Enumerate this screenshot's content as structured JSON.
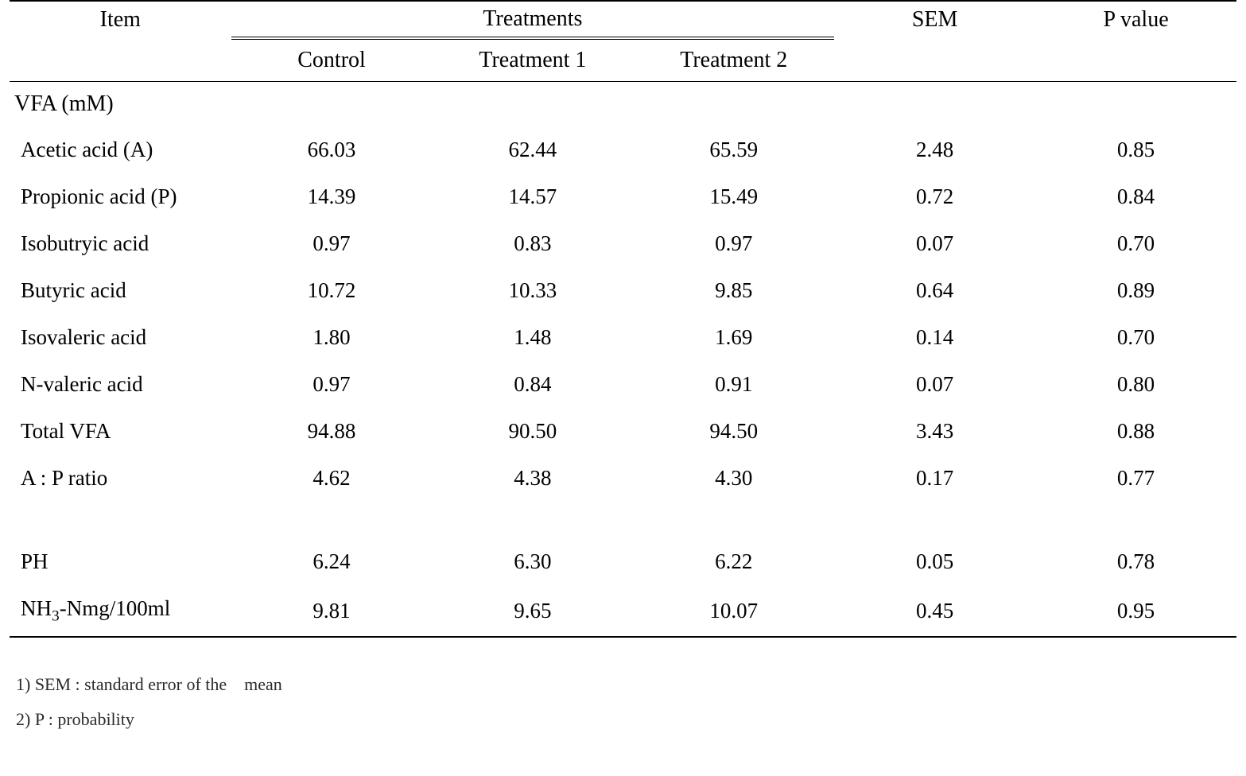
{
  "table": {
    "background_color": "#ffffff",
    "rule_color": "#000000",
    "font_family": "Times New Roman",
    "header_fontsize_pt": 21,
    "body_fontsize_pt": 20,
    "foot_fontsize_pt": 17,
    "columns": {
      "item": "Item",
      "treatments_group": "Treatments",
      "control": "Control",
      "treatment1": "Treatment 1",
      "treatment2": "Treatment 2",
      "sem": "SEM",
      "pvalue": "P value"
    },
    "section1_label": "VFA (mM)",
    "rows": [
      {
        "label": "Acetic acid (A)",
        "control": "66.03",
        "t1": "62.44",
        "t2": "65.59",
        "sem": "2.48",
        "p": "0.85"
      },
      {
        "label": "Propionic acid (P)",
        "control": "14.39",
        "t1": "14.57",
        "t2": "15.49",
        "sem": "0.72",
        "p": "0.84"
      },
      {
        "label": "Isobutryic acid",
        "control": "0.97",
        "t1": "0.83",
        "t2": "0.97",
        "sem": "0.07",
        "p": "0.70"
      },
      {
        "label": "Butyric acid",
        "control": "10.72",
        "t1": "10.33",
        "t2": "9.85",
        "sem": "0.64",
        "p": "0.89"
      },
      {
        "label": "Isovaleric acid",
        "control": "1.80",
        "t1": "1.48",
        "t2": "1.69",
        "sem": "0.14",
        "p": "0.70"
      },
      {
        "label": "N-valeric acid",
        "control": "0.97",
        "t1": "0.84",
        "t2": "0.91",
        "sem": "0.07",
        "p": "0.80"
      },
      {
        "label": "Total VFA",
        "control": "94.88",
        "t1": "90.50",
        "t2": "94.50",
        "sem": "3.43",
        "p": "0.88"
      },
      {
        "label": "A : P ratio",
        "control": "4.62",
        "t1": "4.38",
        "t2": "4.30",
        "sem": "0.17",
        "p": "0.77"
      }
    ],
    "rows2": [
      {
        "label": "PH",
        "control": "6.24",
        "t1": "6.30",
        "t2": "6.22",
        "sem": "0.05",
        "p": "0.78"
      },
      {
        "label_html": "NH<sub>3</sub>-Nmg/100ml",
        "label": "NH3-Nmg/100ml",
        "control": "9.81",
        "t1": "9.65",
        "t2": "10.07",
        "sem": "0.45",
        "p": "0.95"
      }
    ],
    "footnotes": [
      "1) SEM : standard error of the mean",
      "2) P : probability"
    ]
  }
}
